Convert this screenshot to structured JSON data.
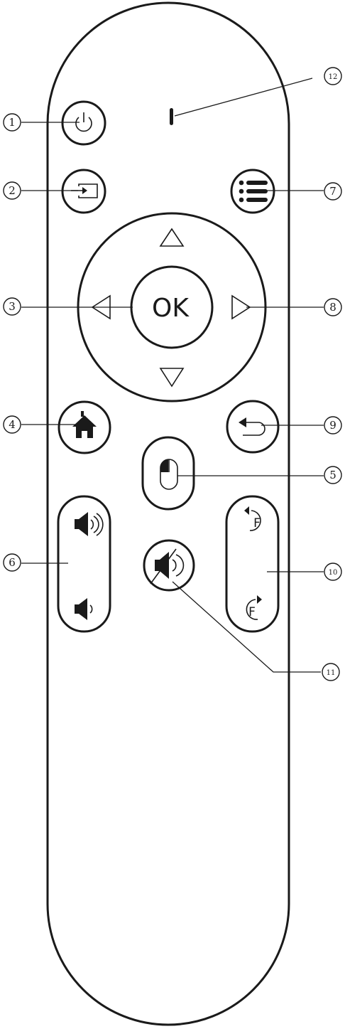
{
  "ok_button": {
    "label": "OK"
  },
  "freeze_button": {
    "top_letter": "F",
    "bottom_letter": "F"
  },
  "callouts": {
    "c1": "1",
    "c2": "2",
    "c3": "3",
    "c4": "4",
    "c5": "5",
    "c6": "6",
    "c7": "7",
    "c8": "8",
    "c9": "9",
    "c10": "10",
    "c11": "11",
    "c12": "12"
  },
  "icons": {
    "power": "power-icon",
    "input": "input-source-icon",
    "menu": "menu-icon",
    "home": "home-icon",
    "back": "back-icon",
    "mouse": "mouse-icon",
    "volume_up": "volume-up-icon",
    "volume_down": "volume-down-icon",
    "mute": "mute-icon",
    "indicator": "indicator-light"
  },
  "colors": {
    "ink": "#1a1a1a",
    "background": "#ffffff"
  }
}
